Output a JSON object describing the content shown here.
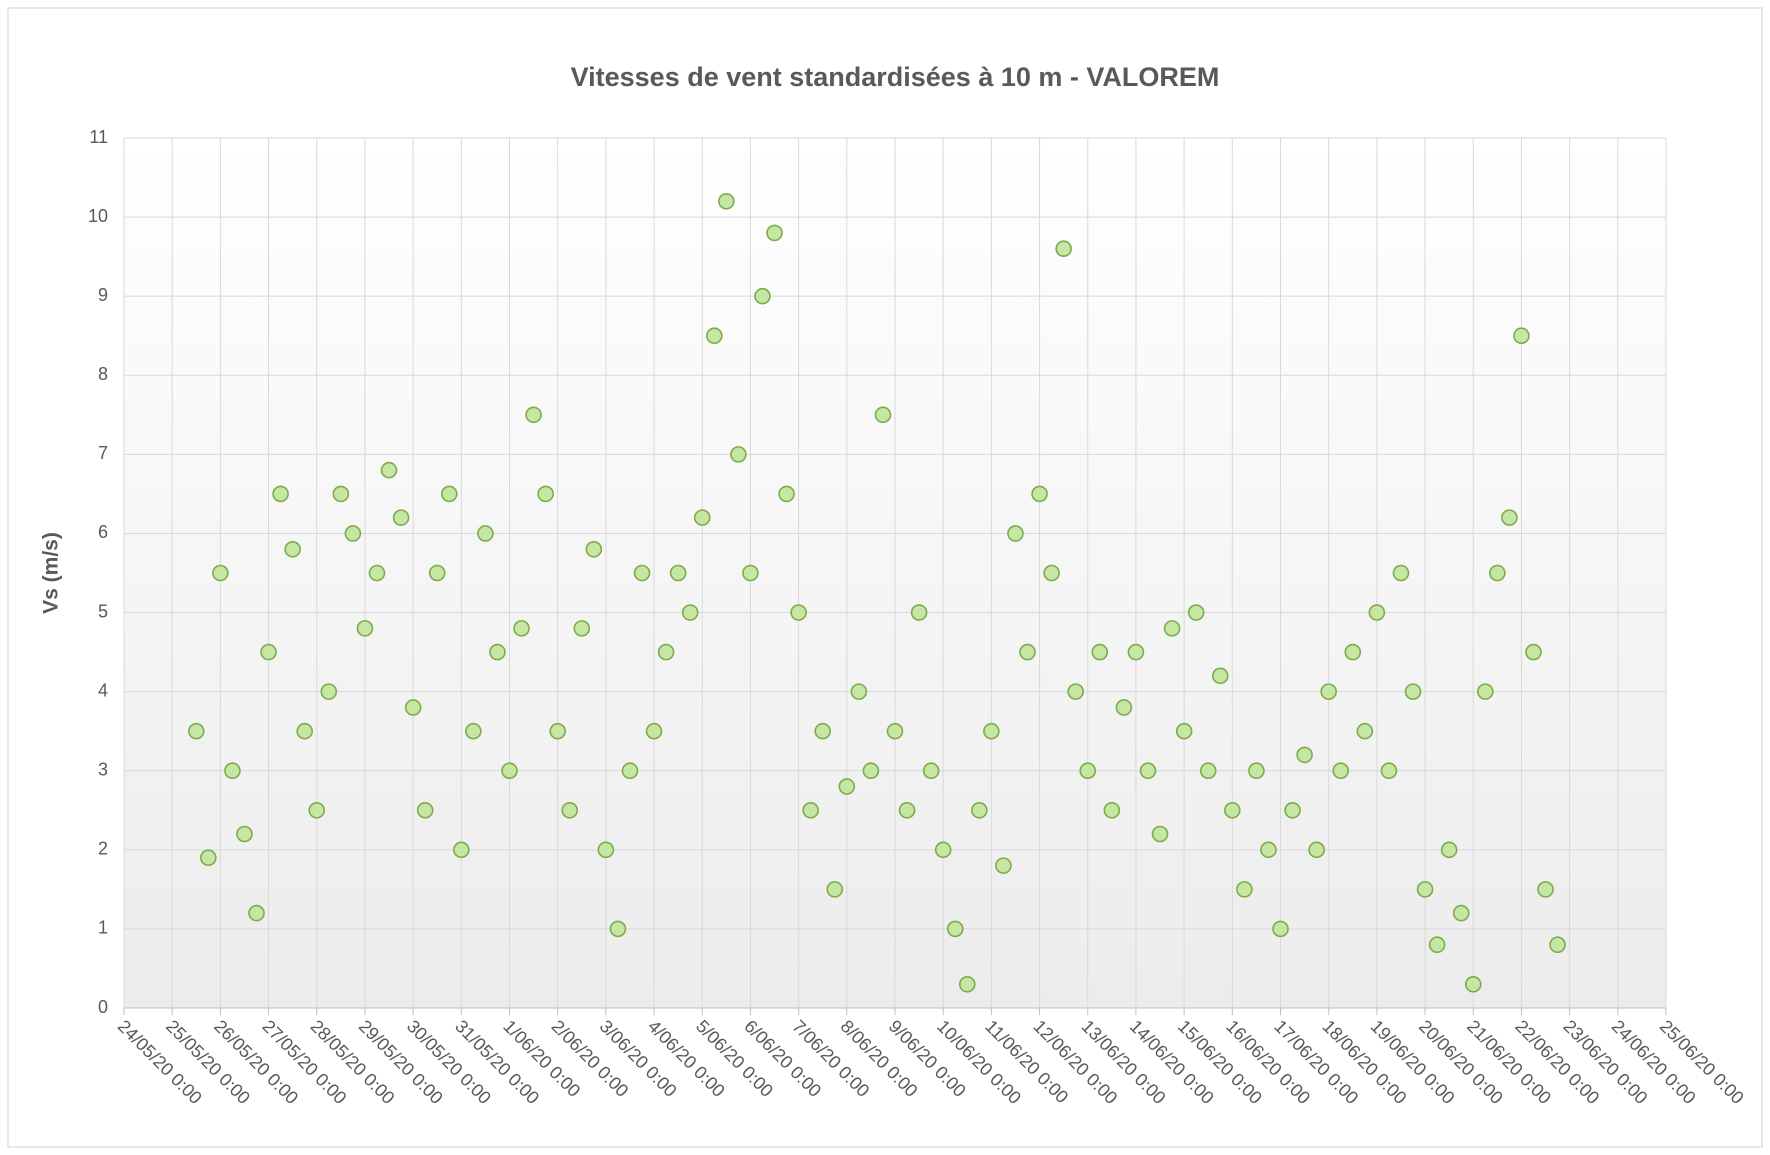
{
  "chart_data": {
    "type": "scatter",
    "title": "Vitesses de vent standardisées à 10 m - VALOREM",
    "y_label": "Vs (m/s)",
    "color": "#c6e7a3",
    "edge_color": "#7dab4a",
    "grid": true,
    "xlim": [
      43975,
      44007
    ],
    "xticks": [
      {
        "value": 43975,
        "label": "24/05/20 0:00"
      },
      {
        "value": 43976,
        "label": "25/05/20 0:00"
      },
      {
        "value": 43977,
        "label": "26/05/20 0:00"
      },
      {
        "value": 43978,
        "label": "27/05/20 0:00"
      },
      {
        "value": 43979,
        "label": "28/05/20 0:00"
      },
      {
        "value": 43980,
        "label": "29/05/20 0:00"
      },
      {
        "value": 43981,
        "label": "30/05/20 0:00"
      },
      {
        "value": 43982,
        "label": "31/05/20 0:00"
      },
      {
        "value": 43983,
        "label": "1/06/20 0:00"
      },
      {
        "value": 43984,
        "label": "2/06/20 0:00"
      },
      {
        "value": 43985,
        "label": "3/06/20 0:00"
      },
      {
        "value": 43986,
        "label": "4/06/20 0:00"
      },
      {
        "value": 43987,
        "label": "5/06/20 0:00"
      },
      {
        "value": 43988,
        "label": "6/06/20 0:00"
      },
      {
        "value": 43989,
        "label": "7/06/20 0:00"
      },
      {
        "value": 43990,
        "label": "8/06/20 0:00"
      },
      {
        "value": 43991,
        "label": "9/06/20 0:00"
      },
      {
        "value": 43992,
        "label": "10/06/20 0:00"
      },
      {
        "value": 43993,
        "label": "11/06/20 0:00"
      },
      {
        "value": 43994,
        "label": "12/06/20 0:00"
      },
      {
        "value": 43995,
        "label": "13/06/20 0:00"
      },
      {
        "value": 43996,
        "label": "14/06/20 0:00"
      },
      {
        "value": 43997,
        "label": "15/06/20 0:00"
      },
      {
        "value": 43998,
        "label": "16/06/20 0:00"
      },
      {
        "value": 43999,
        "label": "17/06/20 0:00"
      },
      {
        "value": 44000,
        "label": "18/06/20 0:00"
      },
      {
        "value": 44001,
        "label": "19/06/20 0:00"
      },
      {
        "value": 44002,
        "label": "20/06/20 0:00"
      },
      {
        "value": 44003,
        "label": "21/06/20 0:00"
      },
      {
        "value": 44004,
        "label": "22/06/20 0:00"
      },
      {
        "value": 44005,
        "label": "23/06/20 0:00"
      },
      {
        "value": 44006,
        "label": "24/06/20 0:00"
      },
      {
        "value": 44007,
        "label": "25/06/20 0:00"
      }
    ],
    "ylim": [
      0,
      11
    ],
    "yticks": [
      0,
      1,
      2,
      3,
      4,
      5,
      6,
      7,
      8,
      9,
      10,
      11
    ],
    "x": [
      43976.5,
      43976.75,
      43977,
      43977.25,
      43977.5,
      43977.75,
      43978,
      43978.25,
      43978.5,
      43978.75,
      43979,
      43979.25,
      43979.5,
      43979.75,
      43980,
      43980.25,
      43980.5,
      43980.75,
      43981,
      43981.25,
      43981.5,
      43981.75,
      43982,
      43982.25,
      43982.5,
      43982.75,
      43983,
      43983.25,
      43983.5,
      43983.75,
      43984,
      43984.25,
      43984.5,
      43984.75,
      43985,
      43985.25,
      43985.5,
      43985.75,
      43986,
      43986.25,
      43986.5,
      43986.75,
      43987,
      43987.25,
      43987.5,
      43987.75,
      43988,
      43988.25,
      43988.5,
      43988.75,
      43989,
      43989.25,
      43989.5,
      43989.75,
      43990,
      43990.25,
      43990.5,
      43990.75,
      43991,
      43991.25,
      43991.5,
      43991.75,
      43992,
      43992.25,
      43992.5,
      43992.75,
      43993,
      43993.25,
      43993.5,
      43993.75,
      43994,
      43994.25,
      43994.5,
      43994.75,
      43995,
      43995.25,
      43995.5,
      43995.75,
      43996,
      43996.25,
      43996.5,
      43996.75,
      43997,
      43997.25,
      43997.5,
      43997.75,
      43998,
      43998.25,
      43998.5,
      43998.75,
      43999,
      43999.25,
      43999.5,
      43999.75,
      44000,
      44000.25,
      44000.5,
      44000.75,
      44001,
      44001.25,
      44001.5,
      44001.75,
      44002,
      44002.25,
      44002.5,
      44002.75,
      44003,
      44003.25,
      44003.5,
      44003.75,
      44004,
      44004.25,
      44004.5,
      44004.75
    ],
    "values": [
      3.5,
      1.9,
      5.5,
      3.0,
      2.2,
      1.2,
      4.5,
      6.5,
      5.8,
      3.5,
      2.5,
      4.0,
      6.5,
      6.0,
      4.8,
      5.5,
      6.8,
      6.2,
      3.8,
      2.5,
      5.5,
      6.5,
      2.0,
      3.5,
      6.0,
      4.5,
      3.0,
      4.8,
      7.5,
      6.5,
      3.5,
      2.5,
      4.8,
      5.8,
      2.0,
      1.0,
      3.0,
      5.5,
      3.5,
      4.5,
      5.5,
      5.0,
      6.2,
      8.5,
      10.2,
      7.0,
      5.5,
      9.0,
      9.8,
      6.5,
      5.0,
      2.5,
      3.5,
      1.5,
      2.8,
      4.0,
      3.0,
      7.5,
      3.5,
      2.5,
      5.0,
      3.0,
      2.0,
      1.0,
      0.3,
      2.5,
      3.5,
      1.8,
      6.0,
      4.5,
      6.5,
      5.5,
      9.6,
      4.0,
      3.0,
      4.5,
      2.5,
      3.8,
      4.5,
      3.0,
      2.2,
      4.8,
      3.5,
      5.0,
      3.0,
      4.2,
      2.5,
      1.5,
      3.0,
      2.0,
      1.0,
      2.5,
      3.2,
      2.0,
      4.0,
      3.0,
      4.5,
      3.5,
      5.0,
      3.0,
      5.5,
      4.0,
      1.5,
      0.8,
      2.0,
      1.2,
      0.3,
      4.0,
      5.5,
      6.2,
      8.5,
      4.5,
      1.5,
      0.8
    ]
  }
}
